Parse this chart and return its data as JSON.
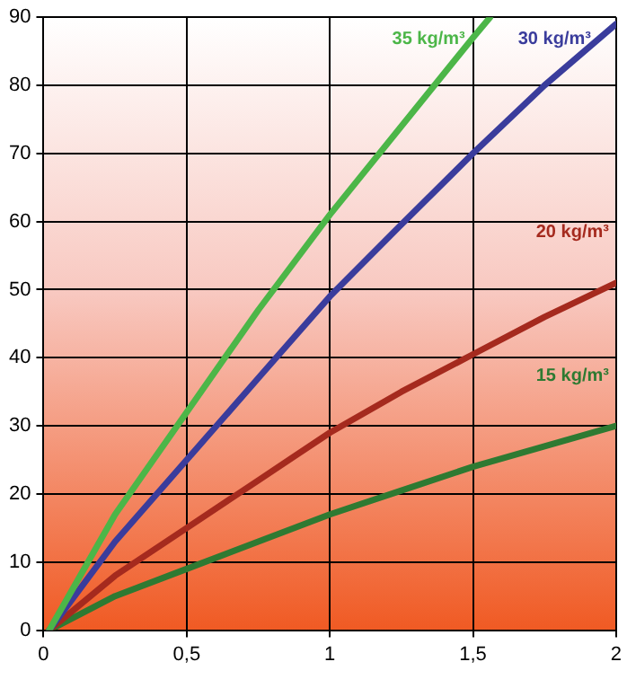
{
  "chart_data": {
    "type": "line",
    "series": [
      {
        "name": "35 kg/m³",
        "color": "#4cb648",
        "x": [
          0.02,
          0.25,
          0.5,
          0.75,
          1,
          1.25,
          1.5,
          1.56
        ],
        "values": [
          0,
          17,
          32,
          47,
          61,
          74,
          87,
          90
        ]
      },
      {
        "name": "30 kg/m³",
        "color": "#3a3c9c",
        "x": [
          0.02,
          0.25,
          0.5,
          0.75,
          1,
          1.26,
          1.5,
          1.75,
          2
        ],
        "values": [
          0,
          13,
          25,
          37,
          49,
          60,
          70,
          80,
          89
        ]
      },
      {
        "name": "20 kg/m³",
        "color": "#a52a1e",
        "x": [
          0.02,
          0.25,
          0.5,
          0.75,
          1,
          1.25,
          1.5,
          1.75,
          2
        ],
        "values": [
          0,
          8,
          15,
          22,
          29,
          35,
          40.5,
          46,
          51
        ]
      },
      {
        "name": "15 kg/m³",
        "color": "#2e7a32",
        "x": [
          0.02,
          0.25,
          0.5,
          0.75,
          1,
          1.25,
          1.5,
          1.75,
          2
        ],
        "values": [
          0,
          5,
          9,
          13,
          17,
          20.5,
          24,
          27,
          30
        ]
      }
    ],
    "xlim": [
      0,
      2
    ],
    "xticks": [
      0,
      {
        "value": 0.5,
        "label": "0,5"
      },
      1,
      {
        "value": 1.5,
        "label": "1,5"
      },
      2
    ],
    "ylim": [
      0,
      90
    ],
    "yticks": [
      0,
      10,
      20,
      30,
      40,
      50,
      60,
      70,
      80,
      90
    ],
    "grid": true,
    "legend": false,
    "marker": "none",
    "line_style": "solid"
  }
}
